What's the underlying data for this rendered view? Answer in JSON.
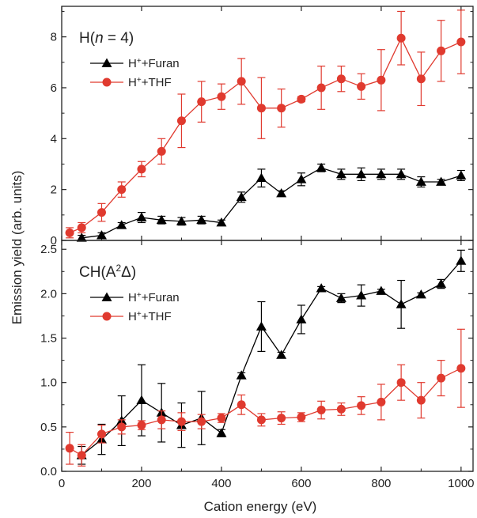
{
  "chart_data": [
    {
      "type": "line",
      "title": "H(n = 4)",
      "title_parts": {
        "prefix": "H(",
        "italic": "n",
        "suffix": " = 4)"
      },
      "xlabel": "Cation energy (eV)",
      "ylabel": "Emission yield (arb. units)",
      "xlim": [
        0,
        1030
      ],
      "ylim": [
        0,
        9.2
      ],
      "yticks": [
        "0",
        "2",
        "4",
        "6",
        "8"
      ],
      "xticks": [
        "0",
        "200",
        "400",
        "600",
        "800",
        "1000"
      ],
      "legend_position": "top-left",
      "series": [
        {
          "name": "H+ + Furan",
          "legend_label": {
            "base": "H",
            "sup": "+",
            "rest": "+Furan"
          },
          "color": "#000000",
          "marker": "triangle",
          "x": [
            50,
            100,
            150,
            200,
            250,
            300,
            350,
            400,
            450,
            500,
            550,
            600,
            650,
            700,
            750,
            800,
            850,
            900,
            950,
            1000
          ],
          "y": [
            0.1,
            0.2,
            0.6,
            0.9,
            0.8,
            0.75,
            0.8,
            0.7,
            1.7,
            2.45,
            1.85,
            2.4,
            2.85,
            2.6,
            2.6,
            2.6,
            2.6,
            2.3,
            2.3,
            2.55
          ],
          "err": [
            0.1,
            0.1,
            0.1,
            0.2,
            0.15,
            0.15,
            0.15,
            0.1,
            0.2,
            0.35,
            0.1,
            0.25,
            0.15,
            0.2,
            0.25,
            0.2,
            0.2,
            0.2,
            0.1,
            0.2
          ]
        },
        {
          "name": "H+ + THF",
          "legend_label": {
            "base": "H",
            "sup": "+",
            "rest": "+THF"
          },
          "color": "#e03a2f",
          "marker": "circle",
          "x": [
            20,
            50,
            100,
            150,
            200,
            250,
            300,
            350,
            400,
            450,
            500,
            550,
            600,
            650,
            700,
            750,
            800,
            850,
            900,
            950,
            1000
          ],
          "y": [
            0.3,
            0.5,
            1.1,
            2.0,
            2.8,
            3.5,
            4.7,
            5.45,
            5.65,
            6.25,
            5.2,
            5.2,
            5.55,
            6.0,
            6.35,
            6.05,
            6.3,
            7.95,
            6.35,
            7.45,
            7.8
          ],
          "err": [
            0.2,
            0.2,
            0.35,
            0.3,
            0.3,
            0.5,
            1.05,
            0.8,
            0.5,
            0.9,
            1.2,
            0.75,
            0.1,
            0.85,
            0.5,
            0.5,
            1.2,
            1.05,
            1.05,
            1.2,
            1.25
          ]
        }
      ]
    },
    {
      "type": "line",
      "title": "CH(A2Δ)",
      "title_parts": {
        "prefix": "CH(A",
        "sup": "2",
        "suffix": "Δ)"
      },
      "xlabel": "Cation energy (eV)",
      "ylabel": "Emission yield (arb. units)",
      "xlim": [
        0,
        1030
      ],
      "ylim": [
        0,
        2.6
      ],
      "yticks": [
        "0.0",
        "0.5",
        "1.0",
        "1.5",
        "2.0",
        "2.5"
      ],
      "xticks": [
        "0",
        "200",
        "400",
        "600",
        "800",
        "1000"
      ],
      "legend_position": "top-left",
      "series": [
        {
          "name": "H+ + Furan",
          "legend_label": {
            "base": "H",
            "sup": "+",
            "rest": "+Furan"
          },
          "color": "#000000",
          "marker": "triangle",
          "x": [
            50,
            100,
            150,
            200,
            250,
            300,
            350,
            400,
            450,
            500,
            550,
            600,
            650,
            700,
            750,
            800,
            850,
            900,
            950,
            1000
          ],
          "y": [
            0.18,
            0.36,
            0.57,
            0.8,
            0.66,
            0.52,
            0.6,
            0.43,
            1.08,
            1.63,
            1.31,
            1.71,
            2.06,
            1.95,
            1.98,
            2.03,
            1.88,
            1.99,
            2.11,
            2.37
          ],
          "err": [
            0.1,
            0.17,
            0.28,
            0.4,
            0.33,
            0.25,
            0.3,
            0.04,
            0.03,
            0.28,
            0.03,
            0.16,
            0.02,
            0.05,
            0.12,
            0.02,
            0.27,
            0.02,
            0.05,
            0.12
          ]
        },
        {
          "name": "H+ + THF",
          "legend_label": {
            "base": "H",
            "sup": "+",
            "rest": "+THF"
          },
          "color": "#e03a2f",
          "marker": "circle",
          "x": [
            20,
            50,
            100,
            150,
            200,
            250,
            300,
            350,
            400,
            450,
            500,
            550,
            600,
            650,
            700,
            750,
            800,
            850,
            900,
            950,
            1000
          ],
          "y": [
            0.26,
            0.18,
            0.42,
            0.5,
            0.52,
            0.58,
            0.56,
            0.56,
            0.6,
            0.75,
            0.58,
            0.6,
            0.61,
            0.69,
            0.7,
            0.74,
            0.78,
            1.0,
            0.8,
            1.05,
            1.16
          ],
          "err": [
            0.18,
            0.12,
            0.1,
            0.08,
            0.05,
            0.1,
            0.1,
            0.08,
            0.05,
            0.11,
            0.07,
            0.07,
            0.05,
            0.1,
            0.07,
            0.1,
            0.2,
            0.2,
            0.2,
            0.2,
            0.44
          ]
        }
      ]
    }
  ],
  "colors": {
    "furan": "#000000",
    "thf": "#e03a2f",
    "axes": "#222222"
  }
}
